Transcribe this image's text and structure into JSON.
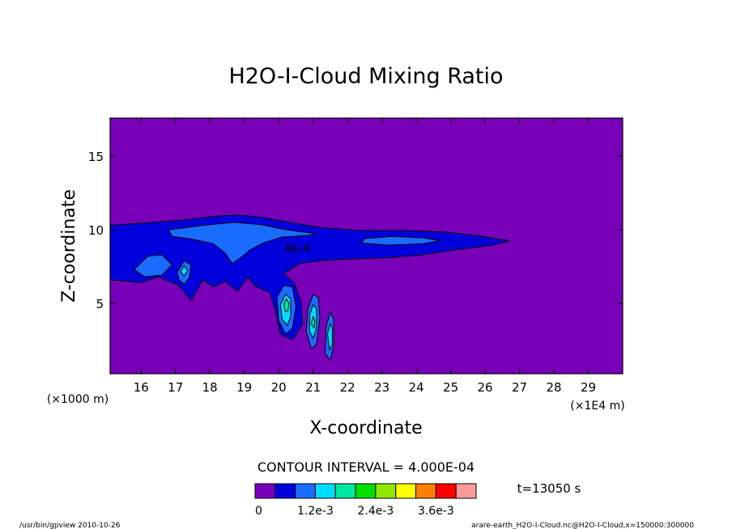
{
  "chart_data": {
    "type": "heatmap",
    "title": "H2O-I-Cloud Mixing Ratio",
    "xlabel": "X-coordinate",
    "ylabel": "Z-coordinate",
    "x_unit_left": "(×1000 m)",
    "x_unit_right": "(×1E4 m)",
    "xlim": [
      15.1,
      30.0
    ],
    "ylim": [
      0.2,
      17.6
    ],
    "x_ticks": [
      16,
      17,
      18,
      19,
      20,
      21,
      22,
      23,
      24,
      25,
      26,
      27,
      28,
      29
    ],
    "y_ticks": [
      5,
      10,
      15
    ],
    "contour_interval_text": "CONTOUR INTERVAL = 4.000E-04",
    "contour_label": "8e-4",
    "contour_levels": [
      0,
      0.0004,
      0.0008,
      0.0012,
      0.0016,
      0.002,
      0.0024,
      0.0028,
      0.0032,
      0.0036,
      0.004,
      0.0044
    ],
    "colorbar_colors": [
      "#7700b8",
      "#0000dd",
      "#1a6cff",
      "#00dcff",
      "#00e8a0",
      "#00e000",
      "#90e800",
      "#ffff00",
      "#ff8000",
      "#ff0000",
      "#ff9a9a"
    ],
    "colorbar_labels": [
      "0",
      "1.2e-3",
      "2.4e-3",
      "3.6e-3"
    ],
    "time_label": "t=13050 s",
    "background_color": "#7700b8",
    "regions": [
      {
        "level": 1,
        "color": "#0000dd",
        "points": [
          [
            15.1,
            10.3
          ],
          [
            16.0,
            10.45
          ],
          [
            17.2,
            10.65
          ],
          [
            18.0,
            10.9
          ],
          [
            18.8,
            11.0
          ],
          [
            19.5,
            10.85
          ],
          [
            20.3,
            10.5
          ],
          [
            21.2,
            10.15
          ],
          [
            22.3,
            9.95
          ],
          [
            23.6,
            9.95
          ],
          [
            24.8,
            9.85
          ],
          [
            25.9,
            9.55
          ],
          [
            26.7,
            9.25
          ],
          [
            26.2,
            8.95
          ],
          [
            25.2,
            8.65
          ],
          [
            24.2,
            8.3
          ],
          [
            23.2,
            8.1
          ],
          [
            22.0,
            8.0
          ],
          [
            21.2,
            7.9
          ],
          [
            20.6,
            7.7
          ],
          [
            20.15,
            7.0
          ],
          [
            20.45,
            6.4
          ],
          [
            20.65,
            5.1
          ],
          [
            20.7,
            3.6
          ],
          [
            20.4,
            2.5
          ],
          [
            20.05,
            2.9
          ],
          [
            19.9,
            4.5
          ],
          [
            19.75,
            5.7
          ],
          [
            19.3,
            6.2
          ],
          [
            19.1,
            6.8
          ],
          [
            18.8,
            5.8
          ],
          [
            18.45,
            6.5
          ],
          [
            18.1,
            6.1
          ],
          [
            17.8,
            6.6
          ],
          [
            17.45,
            5.2
          ],
          [
            17.1,
            6.2
          ],
          [
            16.5,
            6.8
          ],
          [
            16.0,
            6.4
          ],
          [
            15.1,
            6.6
          ]
        ]
      },
      {
        "level": 2,
        "color": "#1a6cff",
        "points": [
          [
            16.8,
            10.0
          ],
          [
            17.8,
            10.3
          ],
          [
            18.7,
            10.5
          ],
          [
            19.5,
            10.35
          ],
          [
            20.1,
            10.05
          ],
          [
            20.7,
            9.85
          ],
          [
            21.1,
            9.75
          ],
          [
            20.8,
            9.6
          ],
          [
            20.1,
            9.5
          ],
          [
            19.55,
            9.1
          ],
          [
            19.15,
            8.6
          ],
          [
            18.9,
            8.1
          ],
          [
            18.65,
            7.7
          ],
          [
            18.45,
            8.4
          ],
          [
            18.1,
            9.05
          ],
          [
            17.5,
            9.35
          ],
          [
            16.9,
            9.55
          ]
        ]
      },
      {
        "level": 2,
        "color": "#1a6cff",
        "points": [
          [
            22.5,
            9.4
          ],
          [
            23.3,
            9.55
          ],
          [
            24.2,
            9.45
          ],
          [
            24.7,
            9.25
          ],
          [
            24.2,
            9.05
          ],
          [
            23.2,
            8.95
          ],
          [
            22.4,
            9.1
          ]
        ]
      },
      {
        "level": 2,
        "color": "#1a6cff",
        "points": [
          [
            15.8,
            7.3
          ],
          [
            16.2,
            8.2
          ],
          [
            16.6,
            8.3
          ],
          [
            16.9,
            7.6
          ],
          [
            16.6,
            6.9
          ],
          [
            16.1,
            6.8
          ]
        ]
      },
      {
        "level": 2,
        "color": "#1a6cff",
        "points": [
          [
            17.05,
            7.1
          ],
          [
            17.25,
            7.9
          ],
          [
            17.45,
            7.6
          ],
          [
            17.4,
            6.7
          ],
          [
            17.25,
            6.3
          ],
          [
            17.1,
            6.6
          ]
        ]
      },
      {
        "level": 2,
        "color": "#1a6cff",
        "points": [
          [
            19.95,
            5.4
          ],
          [
            20.15,
            6.2
          ],
          [
            20.4,
            6.1
          ],
          [
            20.5,
            4.8
          ],
          [
            20.4,
            3.3
          ],
          [
            20.2,
            2.9
          ],
          [
            20.0,
            3.8
          ]
        ]
      },
      {
        "level": 2,
        "color": "#1a6cff",
        "points": [
          [
            20.85,
            4.6
          ],
          [
            21.0,
            5.6
          ],
          [
            21.15,
            5.4
          ],
          [
            21.2,
            4.0
          ],
          [
            21.1,
            2.2
          ],
          [
            20.95,
            1.9
          ],
          [
            20.8,
            3.1
          ]
        ]
      },
      {
        "level": 2,
        "color": "#1a6cff",
        "points": [
          [
            21.38,
            3.4
          ],
          [
            21.5,
            4.4
          ],
          [
            21.6,
            3.9
          ],
          [
            21.6,
            2.1
          ],
          [
            21.5,
            1.1
          ],
          [
            21.35,
            1.6
          ]
        ]
      },
      {
        "level": 3,
        "color": "#00dcff",
        "points": [
          [
            17.15,
            7.15
          ],
          [
            17.25,
            7.55
          ],
          [
            17.35,
            7.2
          ],
          [
            17.25,
            6.85
          ]
        ]
      },
      {
        "level": 3,
        "color": "#00dcff",
        "points": [
          [
            20.05,
            4.9
          ],
          [
            20.2,
            5.6
          ],
          [
            20.35,
            5.3
          ],
          [
            20.35,
            4.1
          ],
          [
            20.25,
            3.5
          ],
          [
            20.1,
            3.9
          ]
        ]
      },
      {
        "level": 3,
        "color": "#00dcff",
        "points": [
          [
            20.9,
            4.2
          ],
          [
            21.0,
            4.9
          ],
          [
            21.1,
            4.6
          ],
          [
            21.1,
            3.3
          ],
          [
            21.0,
            2.6
          ],
          [
            20.9,
            3.1
          ]
        ]
      },
      {
        "level": 3,
        "color": "#00dcff",
        "points": [
          [
            21.42,
            2.9
          ],
          [
            21.5,
            3.6
          ],
          [
            21.56,
            3.3
          ],
          [
            21.56,
            2.2
          ],
          [
            21.48,
            1.8
          ]
        ]
      },
      {
        "level": 4,
        "color": "#00e8a0",
        "points": [
          [
            20.15,
            4.9
          ],
          [
            20.22,
            5.3
          ],
          [
            20.3,
            5.0
          ],
          [
            20.27,
            4.5
          ],
          [
            20.2,
            4.4
          ]
        ]
      },
      {
        "level": 4,
        "color": "#00e8a0",
        "points": [
          [
            20.95,
            3.6
          ],
          [
            21.0,
            4.1
          ],
          [
            21.05,
            3.8
          ],
          [
            21.03,
            3.3
          ]
        ]
      }
    ],
    "notes": [
      {
        "text": "/usr/bin/gpview  2010-10-26"
      },
      {
        "text": "arare-earth_H2O-I-Cloud.nc@H2O-I-Cloud,x=150000:300000"
      }
    ]
  }
}
